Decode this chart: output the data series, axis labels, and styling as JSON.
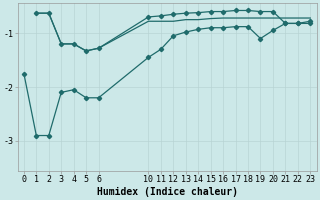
{
  "bg_color": "#cce8e8",
  "line_color": "#1f6b6b",
  "grid_color": "#b8d4d4",
  "xlabel": "Humidex (Indice chaleur)",
  "xlabel_fontsize": 7,
  "tick_fontsize": 6,
  "yticks": [
    -3,
    -2,
    -1
  ],
  "xlim": [
    -0.5,
    23.5
  ],
  "ylim": [
    -3.55,
    -0.45
  ],
  "line1_x": [
    0,
    1,
    2,
    3,
    4,
    5,
    6,
    10,
    11,
    12,
    13,
    14,
    15,
    16,
    17,
    18,
    19,
    20,
    21,
    22,
    23
  ],
  "line1_y": [
    -1.75,
    -2.9,
    -2.9,
    -2.1,
    -2.05,
    -2.2,
    -2.2,
    -1.45,
    -1.3,
    -1.05,
    -0.98,
    -0.93,
    -0.9,
    -0.9,
    -0.88,
    -0.88,
    -1.1,
    -0.95,
    -0.82,
    -0.82,
    -0.82
  ],
  "line2_x": [
    1,
    2,
    3,
    4,
    5,
    6,
    10,
    11,
    12,
    13,
    14,
    15,
    16,
    17,
    18,
    19,
    20,
    21,
    22,
    23
  ],
  "line2_y": [
    -0.63,
    -0.63,
    -1.2,
    -1.2,
    -1.33,
    -1.28,
    -0.78,
    -0.78,
    -0.78,
    -0.75,
    -0.75,
    -0.73,
    -0.72,
    -0.72,
    -0.72,
    -0.72,
    -0.72,
    -0.72,
    -0.72,
    -0.72
  ],
  "line3_x": [
    1,
    2,
    3,
    4,
    5,
    6,
    10,
    11,
    12,
    13,
    14,
    15,
    16,
    17,
    18,
    19,
    20,
    21,
    22,
    23
  ],
  "line3_y": [
    -0.63,
    -0.63,
    -1.2,
    -1.2,
    -1.33,
    -1.28,
    -0.7,
    -0.68,
    -0.65,
    -0.63,
    -0.62,
    -0.6,
    -0.6,
    -0.58,
    -0.58,
    -0.6,
    -0.6,
    -0.82,
    -0.82,
    -0.78
  ],
  "xtick_positions": [
    0,
    1,
    2,
    3,
    4,
    5,
    6,
    10,
    11,
    12,
    13,
    14,
    15,
    16,
    17,
    18,
    19,
    20,
    21,
    22,
    23
  ],
  "xtick_labels": [
    "0",
    "1",
    "2",
    "3",
    "4",
    "5",
    "6",
    "10",
    "11",
    "12",
    "13",
    "14",
    "15",
    "16",
    "17",
    "18",
    "19",
    "20",
    "21",
    "22",
    "23"
  ]
}
